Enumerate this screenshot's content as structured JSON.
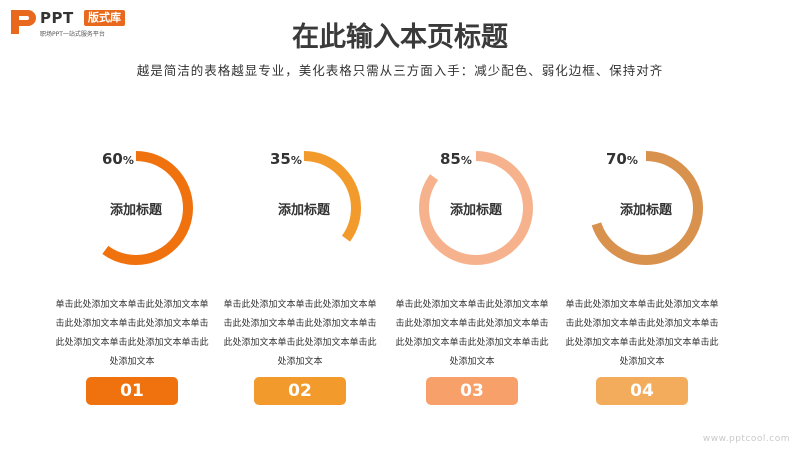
{
  "logo": {
    "brand": "PPT",
    "tag": "版式库",
    "slogan": "职场PPT一站式服务平台"
  },
  "title": "在此输入本页标题",
  "subtitle": "越是简洁的表格越显专业，美化表格只需从三方面入手：减少配色、弱化边框、保持对齐",
  "cards": [
    {
      "percent": 60,
      "percent_text": "60",
      "unit": "%",
      "label": "添加标题",
      "description": "单击此处添加文本单击此处添加文本单击此处添加文本单击此处添加文本单击此处添加文本单击此处添加文本单击此处添加文本",
      "number": "01",
      "color": "#f0720f"
    },
    {
      "percent": 35,
      "percent_text": "35",
      "unit": "%",
      "label": "添加标题",
      "description": "单击此处添加文本单击此处添加文本单击此处添加文本单击此处添加文本单击此处添加文本单击此处添加文本单击此处添加文本",
      "number": "02",
      "color": "#f29a2b"
    },
    {
      "percent": 85,
      "percent_text": "85",
      "unit": "%",
      "label": "添加标题",
      "description": "单击此处添加文本单击此处添加文本单击此处添加文本单击此处添加文本单击此处添加文本单击此处添加文本单击此处添加文本",
      "number": "03",
      "color": "#f6b28c"
    },
    {
      "percent": 70,
      "percent_text": "70",
      "unit": "%",
      "label": "添加标题",
      "description": "单击此处添加文本单击此处添加文本单击此处添加文本单击此处添加文本单击此处添加文本单击此处添加文本单击此处添加文本",
      "number": "04",
      "color": "#d9914e"
    }
  ],
  "card_number_colors": [
    "#f0720f",
    "#f29a2b",
    "#f7a06a",
    "#f3ac5c"
  ],
  "watermark": "www.pptcool.com"
}
